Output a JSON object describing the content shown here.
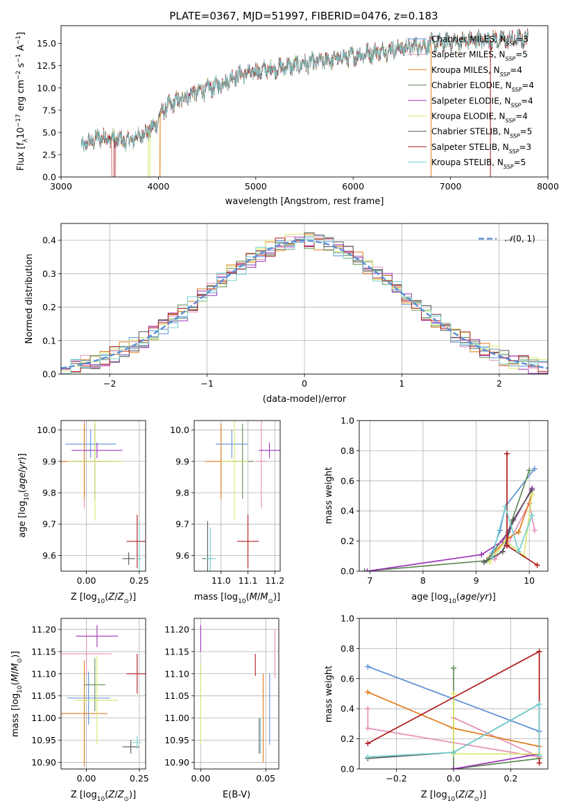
{
  "title": "PLATE=0367, MJD=51997, FIBERID=0476, z=0.183",
  "chart_data": [
    {
      "id": "spectrum",
      "type": "line",
      "xlabel": "wavelength [Angstrom, rest frame]",
      "ylabel": "Flux [f_λ 10^-17 erg cm^-2 s^-1 A^-1]",
      "xlim": [
        3000,
        8000
      ],
      "ylim": [
        0,
        17
      ],
      "xticks": [
        3000,
        4000,
        5000,
        6000,
        7000,
        8000
      ],
      "yticks": [
        0.0,
        2.5,
        5.0,
        7.5,
        10.0,
        12.5,
        15.0
      ],
      "grid": false,
      "legend_position": "top-right",
      "continuum_points": [
        [
          3200,
          3.4
        ],
        [
          3400,
          4.5
        ],
        [
          3700,
          4.0
        ],
        [
          3950,
          5.5
        ],
        [
          4050,
          7.6
        ],
        [
          4300,
          9.2
        ],
        [
          4600,
          10.2
        ],
        [
          4800,
          11.4
        ],
        [
          5100,
          12.0
        ],
        [
          5500,
          12.7
        ],
        [
          6000,
          13.6
        ],
        [
          6500,
          14.5
        ],
        [
          7000,
          15.2
        ],
        [
          7400,
          15.4
        ],
        [
          7800,
          15.5
        ]
      ],
      "series": [
        {
          "name": "Chabrier MILES, N_SSP=3",
          "color": "#5b8fd6"
        },
        {
          "name": "Salpeter MILES, N_SSP=5",
          "color": "#e58fb8"
        },
        {
          "name": "Kroupa MILES, N_SSP=4",
          "color": "#e07b1a"
        },
        {
          "name": "Chabrier ELODIE, N_SSP=4",
          "color": "#5e8a54"
        },
        {
          "name": "Salpeter ELODIE, N_SSP=4",
          "color": "#9b33b8"
        },
        {
          "name": "Kroupa ELODIE, N_SSP=4",
          "color": "#d9e86a"
        },
        {
          "name": "Chabrier STELIB, N_SSP=5",
          "color": "#555555"
        },
        {
          "name": "Salpeter STELIB, N_SSP=3",
          "color": "#b01919"
        },
        {
          "name": "Kroupa STELIB, N_SSP=5",
          "color": "#74d0d0"
        }
      ]
    },
    {
      "id": "residuals",
      "type": "histogram",
      "xlabel": "(data-model)/error",
      "ylabel": "Normed distribution",
      "xlim": [
        -2.5,
        2.5
      ],
      "ylim": [
        0,
        0.45
      ],
      "xticks": [
        -2,
        -1,
        0,
        1,
        2
      ],
      "yticks": [
        0.0,
        0.1,
        0.2,
        0.3,
        0.4
      ],
      "grid": true,
      "legend_position": "top-right",
      "reference_label": "N(0,1)",
      "bin_width": 0.1,
      "colors": [
        "#5b8fd6",
        "#e58fb8",
        "#e07b1a",
        "#5e8a54",
        "#9b33b8",
        "#d9e86a",
        "#555555",
        "#b01919",
        "#74d0d0"
      ]
    },
    {
      "id": "age-vs-Z",
      "type": "errorbar",
      "xlabel": "Z [log10(Z/Z⊙)]",
      "ylabel": "age [log10(age/yr)]",
      "xlim": [
        -0.12,
        0.28
      ],
      "ylim": [
        9.55,
        10.03
      ],
      "xticks": [
        0.0,
        0.25
      ],
      "yticks": [
        9.6,
        9.7,
        9.8,
        9.9,
        10.0
      ],
      "grid": true,
      "points": [
        {
          "x": 0.02,
          "xerr": 0.12,
          "y": 9.955,
          "yerr": 0.045,
          "color": "#5b8fd6"
        },
        {
          "x": -0.01,
          "xerr": 0.11,
          "y": 9.9,
          "yerr": 0.15,
          "color": "#e58fb8"
        },
        {
          "x": -0.01,
          "xerr": 0.11,
          "y": 9.9,
          "yerr": 0.12,
          "color": "#e07b1a"
        },
        {
          "x": 0.04,
          "xerr": 0.11,
          "y": 9.9,
          "yerr": 0.12,
          "color": "#5e8a54"
        },
        {
          "x": 0.05,
          "xerr": 0.12,
          "y": 9.935,
          "yerr": 0.025,
          "color": "#9b33b8"
        },
        {
          "x": 0.04,
          "xerr": 0.13,
          "y": 9.9,
          "yerr": 0.19,
          "color": "#d9e86a"
        },
        {
          "x": 0.2,
          "xerr": 0.03,
          "y": 9.59,
          "yerr": 0.02,
          "color": "#555555"
        },
        {
          "x": 0.24,
          "xerr": 0.05,
          "y": 9.645,
          "yerr": 0.085,
          "color": "#b01919"
        },
        {
          "x": 0.25,
          "xerr": 0.01,
          "y": 9.59,
          "yerr": 0.12,
          "color": "#74d0d0"
        }
      ]
    },
    {
      "id": "age-vs-mass",
      "type": "errorbar",
      "xlabel": "mass [log10(M/M⊙)]",
      "ylabel": "",
      "xlim": [
        10.9,
        11.22
      ],
      "ylim": [
        9.55,
        10.03
      ],
      "xticks": [
        11.0,
        11.1,
        11.2
      ],
      "yticks": [
        9.6,
        9.7,
        9.8,
        9.9,
        10.0
      ],
      "grid": true,
      "points": [
        {
          "x": 11.04,
          "xerr": 0.06,
          "y": 9.955,
          "yerr": 0.045,
          "color": "#5b8fd6"
        },
        {
          "x": 11.15,
          "xerr": 0.02,
          "y": 9.9,
          "yerr": 0.15,
          "color": "#e58fb8"
        },
        {
          "x": 11.0,
          "xerr": 0.06,
          "y": 9.9,
          "yerr": 0.12,
          "color": "#e07b1a"
        },
        {
          "x": 11.08,
          "xerr": 0.04,
          "y": 9.9,
          "yerr": 0.12,
          "color": "#5e8a54"
        },
        {
          "x": 11.18,
          "xerr": 0.04,
          "y": 9.935,
          "yerr": 0.025,
          "color": "#9b33b8"
        },
        {
          "x": 11.05,
          "xerr": 0.05,
          "y": 9.9,
          "yerr": 0.19,
          "color": "#d9e86a"
        },
        {
          "x": 10.95,
          "xerr": 0.02,
          "y": 9.59,
          "yerr": 0.12,
          "color": "#555555"
        },
        {
          "x": 11.1,
          "xerr": 0.04,
          "y": 9.645,
          "yerr": 0.085,
          "color": "#b01919"
        },
        {
          "x": 10.96,
          "xerr": 0.02,
          "y": 9.59,
          "yerr": 0.1,
          "color": "#74d0d0"
        }
      ]
    },
    {
      "id": "massweight-vs-age",
      "type": "line",
      "xlabel": "age [log10(age/yr)]",
      "ylabel": "mass weight",
      "xlim": [
        6.8,
        10.35
      ],
      "ylim": [
        0,
        1.0
      ],
      "xticks": [
        7,
        8,
        9,
        10
      ],
      "yticks": [
        0.0,
        0.2,
        0.4,
        0.6,
        0.8,
        1.0
      ],
      "grid": true,
      "series": [
        {
          "color": "#5b8fd6",
          "points": [
            [
              9.3,
              0.12
            ],
            [
              9.45,
              0.27
            ],
            [
              9.55,
              0.43
            ],
            [
              10.1,
              0.68
            ]
          ]
        },
        {
          "color": "#e58fb8",
          "points": [
            [
              9.35,
              0.08
            ],
            [
              9.6,
              0.18
            ],
            [
              10.0,
              0.45
            ],
            [
              10.1,
              0.27
            ]
          ]
        },
        {
          "color": "#e07b1a",
          "points": [
            [
              9.25,
              0.09
            ],
            [
              9.6,
              0.22
            ],
            [
              9.8,
              0.26
            ],
            [
              10.05,
              0.51
            ]
          ]
        },
        {
          "color": "#5e8a54",
          "points": [
            [
              6.9,
              0.0
            ],
            [
              9.2,
              0.07
            ],
            [
              9.6,
              0.26
            ],
            [
              10.0,
              0.67
            ]
          ]
        },
        {
          "color": "#9b33b8",
          "points": [
            [
              6.95,
              0.0
            ],
            [
              9.1,
              0.11
            ],
            [
              9.5,
              0.2
            ],
            [
              10.05,
              0.55
            ]
          ]
        },
        {
          "color": "#d9e86a",
          "points": [
            [
              9.25,
              0.06
            ],
            [
              9.55,
              0.2
            ],
            [
              9.9,
              0.1
            ],
            [
              10.05,
              0.51
            ]
          ]
        },
        {
          "color": "#555555",
          "points": [
            [
              9.15,
              0.06
            ],
            [
              9.5,
              0.13
            ],
            [
              9.7,
              0.34
            ],
            [
              10.05,
              0.54
            ]
          ]
        },
        {
          "color": "#b01919",
          "points": [
            [
              9.58,
              0.78
            ],
            [
              9.58,
              0.17
            ],
            [
              10.15,
              0.04
            ]
          ]
        },
        {
          "color": "#74d0d0",
          "points": [
            [
              9.3,
              0.09
            ],
            [
              9.55,
              0.43
            ],
            [
              9.8,
              0.13
            ],
            [
              10.05,
              0.37
            ]
          ]
        }
      ]
    },
    {
      "id": "mass-vs-Z",
      "type": "errorbar",
      "xlabel": "Z [log10(Z/Z⊙)]",
      "ylabel": "mass [log10(M/M⊙)]",
      "xlim": [
        -0.12,
        0.28
      ],
      "ylim": [
        10.885,
        11.225
      ],
      "xticks": [
        0.0,
        0.25
      ],
      "yticks": [
        10.9,
        10.95,
        11.0,
        11.05,
        11.1,
        11.15,
        11.2
      ],
      "grid": true,
      "points": [
        {
          "x": 0.01,
          "xerr": 0.1,
          "y": 11.045,
          "yerr": 0.06,
          "color": "#5b8fd6"
        },
        {
          "x": 0.0,
          "xerr": 0.12,
          "y": 11.145,
          "yerr": 0.05,
          "color": "#e58fb8"
        },
        {
          "x": -0.01,
          "xerr": 0.11,
          "y": 11.01,
          "yerr": 0.12,
          "color": "#e07b1a"
        },
        {
          "x": 0.04,
          "xerr": 0.05,
          "y": 11.075,
          "yerr": 0.06,
          "color": "#5e8a54"
        },
        {
          "x": 0.05,
          "xerr": 0.1,
          "y": 11.185,
          "yerr": 0.025,
          "color": "#9b33b8"
        },
        {
          "x": 0.05,
          "xerr": 0.1,
          "y": 11.04,
          "yerr": 0.1,
          "color": "#d9e86a"
        },
        {
          "x": 0.21,
          "xerr": 0.04,
          "y": 10.935,
          "yerr": 0.015,
          "color": "#555555"
        },
        {
          "x": 0.24,
          "xerr": 0.05,
          "y": 11.1,
          "yerr": 0.045,
          "color": "#b01919"
        },
        {
          "x": 0.24,
          "xerr": 0.02,
          "y": 10.945,
          "yerr": 0.015,
          "color": "#74d0d0"
        }
      ]
    },
    {
      "id": "mass-vs-ebv",
      "type": "errorbar",
      "xlabel": "E(B-V)",
      "ylabel": "",
      "xlim": [
        -0.005,
        0.06
      ],
      "ylim": [
        10.885,
        11.225
      ],
      "xticks": [
        0.0,
        0.05
      ],
      "yticks": [
        10.9,
        10.95,
        11.0,
        11.05,
        11.1,
        11.15,
        11.2
      ],
      "grid": true,
      "points": [
        {
          "x": 0.053,
          "y": 11.02,
          "yerr": 0.08,
          "color": "#5b8fd6"
        },
        {
          "x": 0.057,
          "y": 11.145,
          "yerr": 0.055,
          "color": "#e58fb8"
        },
        {
          "x": 0.048,
          "y": 11.0,
          "yerr": 0.1,
          "color": "#e07b1a"
        },
        {
          "x": 0.0,
          "y": 11.1,
          "yerr": 0.01,
          "color": "#5e8a54"
        },
        {
          "x": 0.0,
          "y": 11.18,
          "yerr": 0.03,
          "color": "#9b33b8"
        },
        {
          "x": 0.0,
          "y": 11.03,
          "yerr": 0.09,
          "color": "#d9e86a"
        },
        {
          "x": 0.045,
          "y": 10.96,
          "yerr": 0.04,
          "color": "#555555"
        },
        {
          "x": 0.042,
          "y": 11.12,
          "yerr": 0.025,
          "color": "#b01919"
        },
        {
          "x": 0.046,
          "y": 10.96,
          "yerr": 0.04,
          "color": "#74d0d0"
        }
      ]
    },
    {
      "id": "massweight-vs-Z",
      "type": "line",
      "xlabel": "Z [log10(Z/Z⊙)]",
      "ylabel": "mass weight",
      "xlim": [
        -0.33,
        0.33
      ],
      "ylim": [
        0,
        1.0
      ],
      "xticks": [
        -0.2,
        0.0,
        0.2
      ],
      "yticks": [
        0.0,
        0.2,
        0.4,
        0.6,
        0.8,
        1.0
      ],
      "grid": true,
      "series": [
        {
          "color": "#5b8fd6",
          "points": [
            [
              -0.3,
              0.68
            ],
            [
              0.3,
              0.25
            ]
          ]
        },
        {
          "color": "#e58fb8",
          "points": [
            [
              -0.3,
              0.4
            ],
            [
              -0.3,
              0.27
            ],
            [
              0.3,
              0.08
            ],
            [
              0.0,
              0.34
            ]
          ]
        },
        {
          "color": "#e07b1a",
          "points": [
            [
              -0.3,
              0.51
            ],
            [
              0.0,
              0.27
            ],
            [
              0.3,
              0.15
            ]
          ]
        },
        {
          "color": "#5e8a54",
          "points": [
            [
              0.0,
              0.67
            ],
            [
              0.0,
              0.0
            ],
            [
              0.3,
              0.07
            ]
          ]
        },
        {
          "color": "#9b33b8",
          "points": [
            [
              0.0,
              0.0
            ],
            [
              0.3,
              0.1
            ]
          ]
        },
        {
          "color": "#d9e86a",
          "points": [
            [
              0.0,
              0.5
            ],
            [
              0.0,
              0.1
            ],
            [
              0.3,
              0.1
            ]
          ]
        },
        {
          "color": "#555555",
          "points": [
            [
              -0.3,
              0.07
            ],
            [
              0.0,
              0.11
            ],
            [
              0.3,
              0.43
            ]
          ]
        },
        {
          "color": "#b01919",
          "points": [
            [
              -0.3,
              0.17
            ],
            [
              0.3,
              0.78
            ],
            [
              0.3,
              0.04
            ]
          ]
        },
        {
          "color": "#74d0d0",
          "points": [
            [
              -0.3,
              0.08
            ],
            [
              0.0,
              0.11
            ],
            [
              0.3,
              0.43
            ],
            [
              0.3,
              0.09
            ]
          ]
        }
      ]
    }
  ]
}
